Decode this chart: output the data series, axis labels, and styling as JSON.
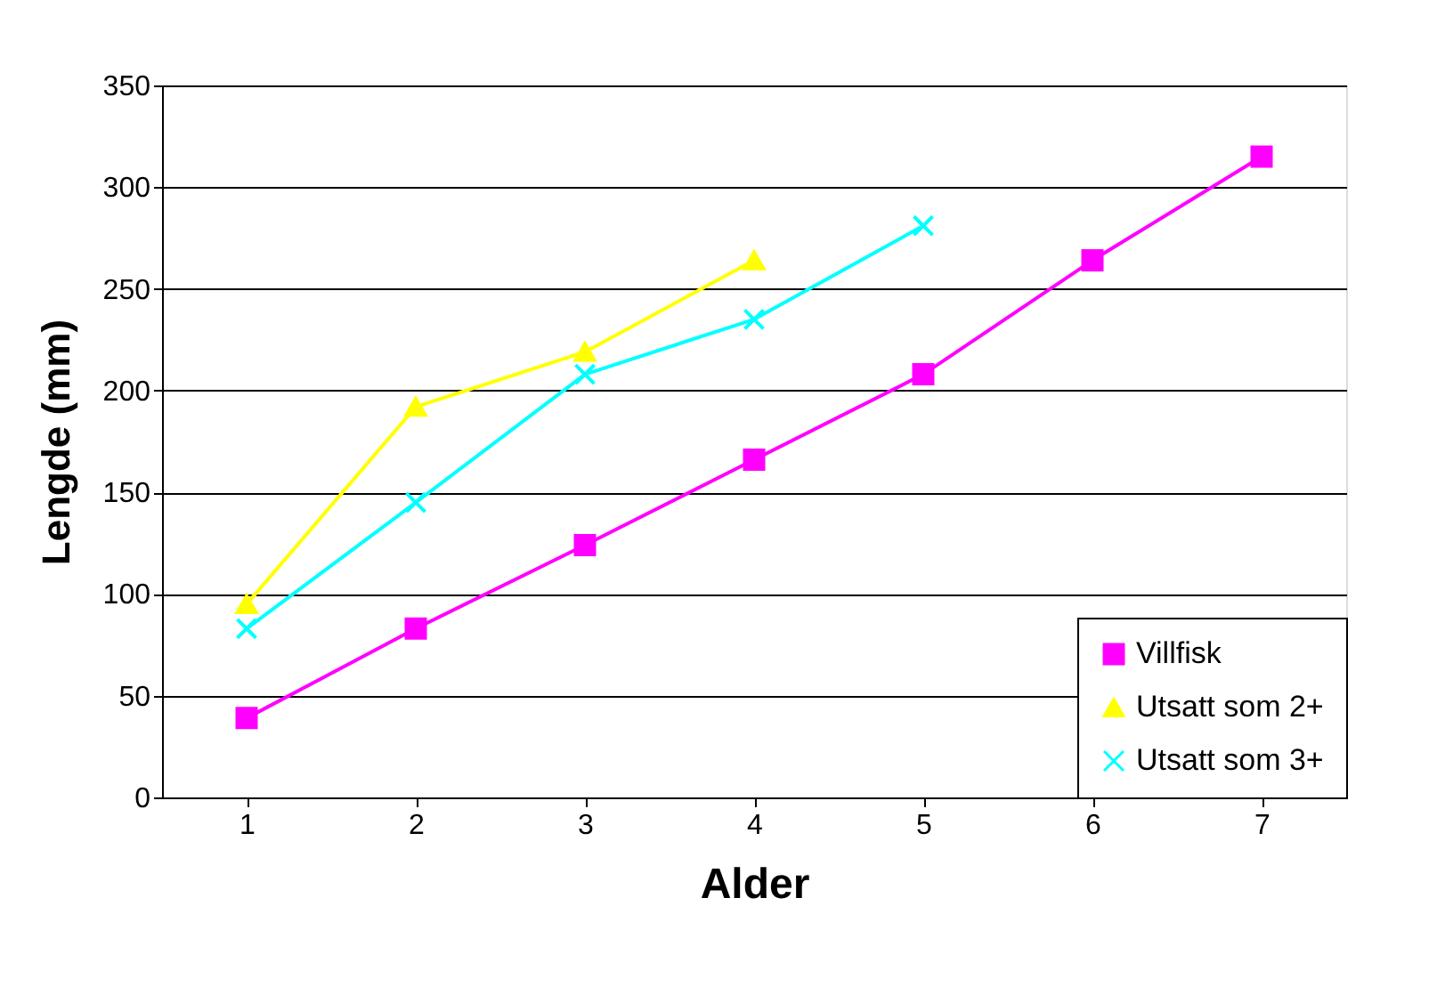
{
  "chart_data": {
    "type": "line",
    "xlabel": "Alder",
    "ylabel": "Lengde (mm)",
    "categories": [
      "1",
      "2",
      "3",
      "4",
      "5",
      "6",
      "7"
    ],
    "ylim": [
      0,
      350
    ],
    "yticks": [
      0,
      50,
      100,
      150,
      200,
      250,
      300,
      350
    ],
    "grid": "y",
    "legend": "bottom right",
    "series": [
      {
        "name": "Villfisk",
        "color": "#ff00ff",
        "marker": "square",
        "values": [
          39,
          83,
          124,
          166,
          208,
          264,
          315
        ]
      },
      {
        "name": "Utsatt som 2+",
        "color": "#ffff00",
        "marker": "triangle",
        "values": [
          95,
          192,
          219,
          264,
          null,
          null,
          null
        ]
      },
      {
        "name": "Utsatt som 3+",
        "color": "#00ffff",
        "marker": "cross",
        "values": [
          83,
          145,
          208,
          235,
          281,
          null,
          null
        ]
      }
    ]
  }
}
